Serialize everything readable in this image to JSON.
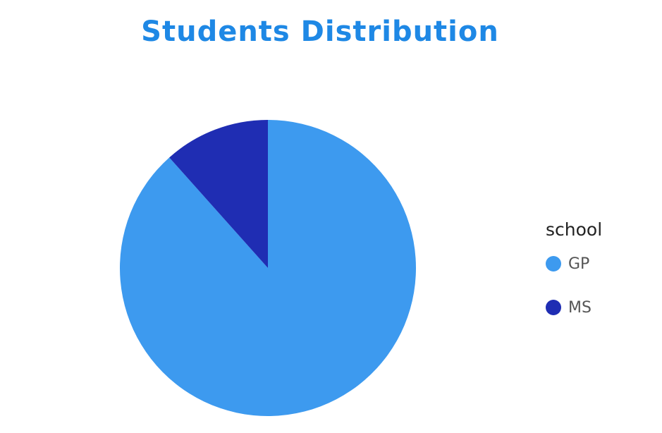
{
  "colors": {
    "title": "#1e88e5",
    "gp": "#3d9aef",
    "ms": "#1f2db3"
  },
  "chart_data": {
    "type": "pie",
    "title": "Students Distribution",
    "legend_title": "school",
    "legend_position": "right",
    "slices": [
      {
        "label": "GP",
        "value": 88.4,
        "color": "#3d9aef"
      },
      {
        "label": "MS",
        "value": 11.6,
        "color": "#1f2db3"
      }
    ]
  }
}
